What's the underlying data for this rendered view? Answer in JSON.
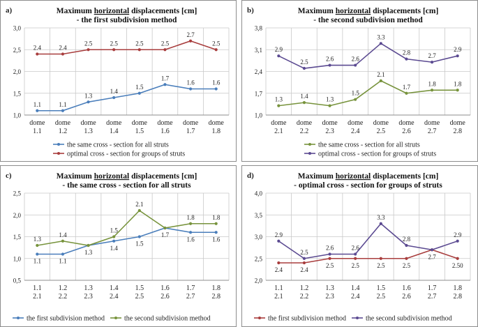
{
  "chart_data": [
    {
      "id": "a",
      "type": "line",
      "panel_label": "a)",
      "title_parts": [
        "Maximum ",
        "horizontal",
        " displacements [cm]"
      ],
      "subtitle": "- the first subdivision method",
      "categories": [
        [
          "dome",
          "1.1"
        ],
        [
          "dome",
          "1.2"
        ],
        [
          "dome",
          "1.3"
        ],
        [
          "dome",
          "1.4"
        ],
        [
          "dome",
          "1.5"
        ],
        [
          "dome",
          "1.6"
        ],
        [
          "dome",
          "1.7"
        ],
        [
          "dome",
          "1.8"
        ]
      ],
      "ylim": [
        1.0,
        3.0
      ],
      "yticks": [
        "1,0",
        "1,5",
        "2,0",
        "2,5",
        "3,0"
      ],
      "tick_values": [
        1.0,
        1.5,
        2.0,
        2.5,
        3.0
      ],
      "grid": true,
      "legend_position": "bottom",
      "series": [
        {
          "name": "the same cross - section for all struts",
          "color": "#4a7ebb",
          "values": [
            1.1,
            1.1,
            1.3,
            1.4,
            1.5,
            1.7,
            1.6,
            1.6
          ],
          "labels": [
            "1.1",
            "1.1",
            "1.3",
            "1.4",
            "1.5",
            "1.7",
            "1.6",
            "1.6"
          ],
          "label_pos": [
            "above",
            "above",
            "above",
            "above",
            "above",
            "above",
            "above",
            "above"
          ]
        },
        {
          "name": "optimal cross - section for groups of struts",
          "color": "#a83d3d",
          "values": [
            2.4,
            2.4,
            2.5,
            2.5,
            2.5,
            2.5,
            2.7,
            2.5
          ],
          "labels": [
            "2.4",
            "2.4",
            "2.5",
            "2.5",
            "2.5",
            "2.5",
            "2.7",
            "2.5"
          ],
          "label_pos": [
            "above",
            "above",
            "above",
            "above",
            "above",
            "above",
            "above",
            "above"
          ]
        }
      ]
    },
    {
      "id": "b",
      "type": "line",
      "panel_label": "b)",
      "title_parts": [
        "Maximum ",
        "horizontal",
        " displacements [cm]"
      ],
      "subtitle": "- the second subdivision method",
      "categories": [
        [
          "dome",
          "2.1"
        ],
        [
          "dome",
          "2.2"
        ],
        [
          "dome",
          "2.3"
        ],
        [
          "dome",
          "2.4"
        ],
        [
          "dome",
          "2.5"
        ],
        [
          "dome",
          "2.6"
        ],
        [
          "dome",
          "2.7"
        ],
        [
          "dome",
          "2.8"
        ]
      ],
      "ylim": [
        1.0,
        3.8
      ],
      "yticks": [
        "1,0",
        "1,7",
        "2,4",
        "3,1",
        "3,8"
      ],
      "tick_values": [
        1.0,
        1.7,
        2.4,
        3.1,
        3.8
      ],
      "grid": true,
      "legend_position": "bottom",
      "series": [
        {
          "name": "the same cross - section for all struts",
          "color": "#77933c",
          "values": [
            1.3,
            1.4,
            1.3,
            1.5,
            2.1,
            1.7,
            1.8,
            1.8
          ],
          "labels": [
            "1.3",
            "1.4",
            "1.3",
            "1.5",
            "2.1",
            "1.7",
            "1.8",
            "1.8"
          ],
          "label_pos": [
            "above",
            "above",
            "above",
            "above",
            "above",
            "above",
            "above",
            "above"
          ]
        },
        {
          "name": "optimal cross - section for groups of struts",
          "color": "#5b4a91",
          "values": [
            2.9,
            2.5,
            2.6,
            2.6,
            3.3,
            2.8,
            2.7,
            2.9
          ],
          "labels": [
            "2.9",
            "2.5",
            "2.6",
            "2.6",
            "3.3",
            "2.8",
            "2.7",
            "2.9"
          ],
          "label_pos": [
            "above",
            "above",
            "above",
            "above",
            "above",
            "above",
            "above",
            "above"
          ]
        }
      ]
    },
    {
      "id": "c",
      "type": "line",
      "panel_label": "c)",
      "title_parts": [
        "Maximum ",
        "horizontal",
        " displacements [cm]"
      ],
      "subtitle": "- the same cross - section for all struts",
      "categories": [
        [
          "1.1",
          "2.1"
        ],
        [
          "1.2",
          "2.2"
        ],
        [
          "1.3",
          "2.3"
        ],
        [
          "1.4",
          "2.4"
        ],
        [
          "1.5",
          "2.5"
        ],
        [
          "1.6",
          "2.6"
        ],
        [
          "1.7",
          "2.7"
        ],
        [
          "1.8",
          "2.8"
        ]
      ],
      "ylim": [
        0.5,
        2.5
      ],
      "yticks": [
        "0,5",
        "1,0",
        "1,5",
        "2,0",
        "2,5"
      ],
      "tick_values": [
        0.5,
        1.0,
        1.5,
        2.0,
        2.5
      ],
      "grid": true,
      "legend_position": "bottom",
      "series": [
        {
          "name": "the first subdivision method",
          "color": "#4a7ebb",
          "values": [
            1.1,
            1.1,
            1.3,
            1.4,
            1.5,
            1.7,
            1.6,
            1.6
          ],
          "labels": [
            "1.1",
            "1.1",
            "1.3",
            "1.4",
            "1.5",
            "1.7",
            "1.6",
            "1.6"
          ],
          "label_pos": [
            "below",
            "below",
            "below",
            "below",
            "below",
            "below",
            "below",
            "below"
          ]
        },
        {
          "name": "the second subdivision method",
          "color": "#77933c",
          "values": [
            1.3,
            1.4,
            1.3,
            1.5,
            2.1,
            1.7,
            1.8,
            1.8
          ],
          "labels": [
            "1.3",
            "1.4",
            "",
            "1.5",
            "2.1",
            "",
            "1.8",
            "1.8"
          ],
          "label_pos": [
            "above",
            "above",
            "above",
            "above",
            "above",
            "above",
            "above",
            "above"
          ]
        }
      ]
    },
    {
      "id": "d",
      "type": "line",
      "panel_label": "d)",
      "title_parts": [
        "Maximum ",
        "horizontal",
        " displacements [cm]"
      ],
      "subtitle": "- optimal cross - section for groups of struts",
      "categories": [
        [
          "1.1",
          "2.1"
        ],
        [
          "1.2",
          "2.2"
        ],
        [
          "1.3",
          "2.3"
        ],
        [
          "1.4",
          "2.4"
        ],
        [
          "1.5",
          "2.5"
        ],
        [
          "1.6",
          "2.6"
        ],
        [
          "1.7",
          "2.7"
        ],
        [
          "1.8",
          "2.8"
        ]
      ],
      "ylim": [
        2.0,
        4.0
      ],
      "yticks": [
        "2,0",
        "2,5",
        "3,0",
        "3,5",
        "4,0"
      ],
      "tick_values": [
        2.0,
        2.5,
        3.0,
        3.5,
        4.0
      ],
      "grid": true,
      "legend_position": "bottom",
      "series": [
        {
          "name": "the first subdivision method",
          "color": "#a83d3d",
          "values": [
            2.4,
            2.4,
            2.5,
            2.5,
            2.5,
            2.5,
            2.7,
            2.5
          ],
          "labels": [
            "2.4",
            "2.4",
            "2.5",
            "2.5",
            "2.5",
            "2.5",
            "2.7",
            "2.50"
          ],
          "label_pos": [
            "below",
            "below",
            "below",
            "below",
            "below",
            "below",
            "below",
            "below"
          ]
        },
        {
          "name": "the second subdivision method",
          "color": "#5b4a91",
          "values": [
            2.9,
            2.5,
            2.6,
            2.6,
            3.3,
            2.8,
            2.7,
            2.9
          ],
          "labels": [
            "2.9",
            "2.5",
            "2.6",
            "2.6",
            "3.3",
            "2.8",
            "",
            "2.9"
          ],
          "label_pos": [
            "above",
            "above",
            "above",
            "above",
            "above",
            "above",
            "above",
            "above"
          ]
        }
      ]
    }
  ]
}
